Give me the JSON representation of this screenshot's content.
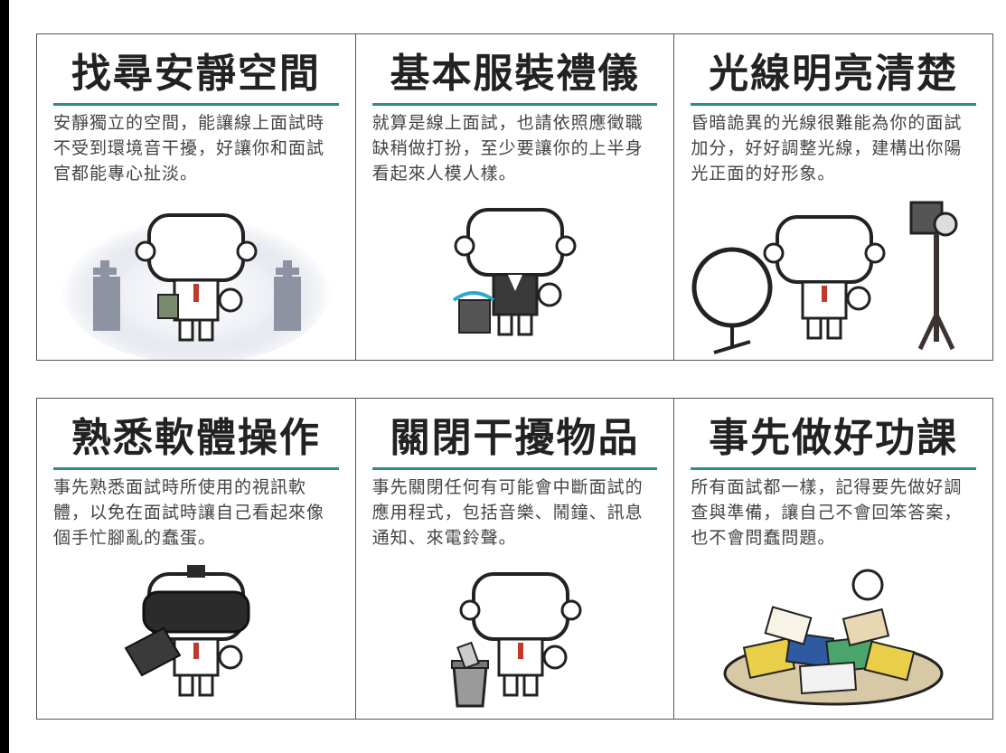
{
  "panels": [
    {
      "title": "找尋安靜空間",
      "text": "安靜獨立的空間，能讓線上面試時不受到環境音干擾，好讓你和面試官都能專心扯淡。",
      "icon": "quiet-room-figure-icon"
    },
    {
      "title": "基本服裝禮儀",
      "text": "就算是線上面試，也請依照應徵職缺稍做打扮，至少要讓你的上半身看起來人模人樣。",
      "icon": "dressed-figure-icon"
    },
    {
      "title": "光線明亮清楚",
      "text": "昏暗詭異的光線很難能為你的面試加分，好好調整光線，建構出你陽光正面的好形象。",
      "icon": "lighting-figure-icon"
    },
    {
      "title": "熟悉軟體操作",
      "text": "事先熟悉面試時所使用的視訊軟體，以免在面試時讓自己看起來像個手忙腳亂的蠢蛋。",
      "icon": "vr-headset-figure-icon"
    },
    {
      "title": "關閉干擾物品",
      "text": "事先關閉任何有可能會中斷面試的應用程式，包括音樂、鬧鐘、訊息通知、來電鈴聲。",
      "icon": "trash-bin-figure-icon"
    },
    {
      "title": "事先做好功課",
      "text": "所有面試都一樣，記得要先做好調查與準備，讓自己不會回笨答案，也不會問蠢問題。",
      "icon": "book-pile-figure-icon"
    }
  ],
  "colors": {
    "accent": "#2e8c86",
    "text": "#444444",
    "title": "#222222",
    "border": "#555555"
  }
}
